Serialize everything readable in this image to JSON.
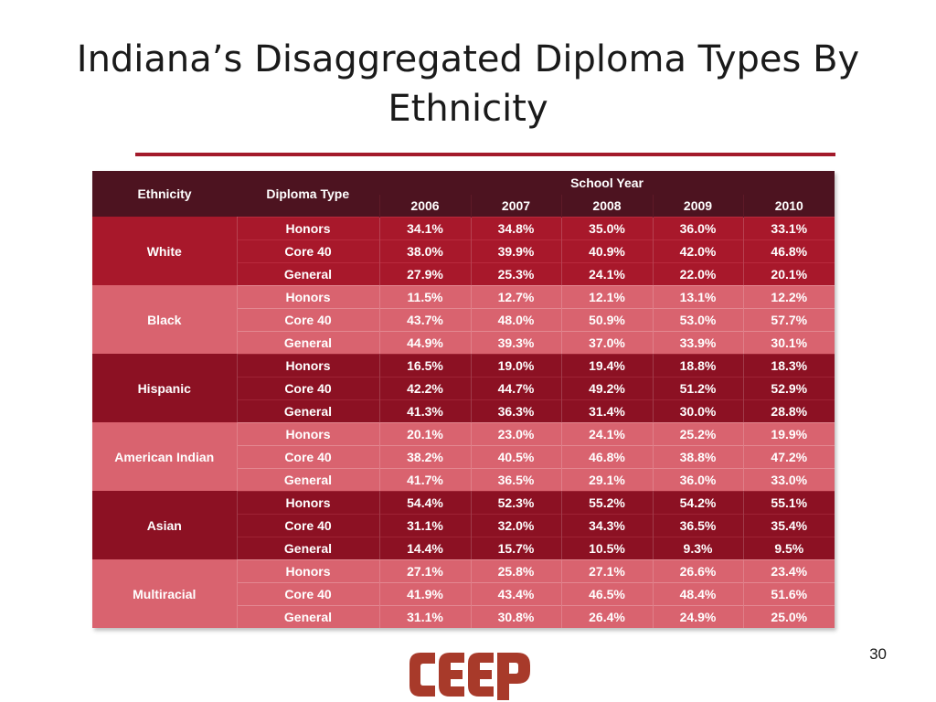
{
  "slide": {
    "title": "Indiana’s Disaggregated Diploma Types By Ethnicity",
    "page_number": "30"
  },
  "table": {
    "headers": {
      "ethnicity": "Ethnicity",
      "diploma_type": "Diploma Type",
      "school_year": "School Year",
      "years": [
        "2006",
        "2007",
        "2008",
        "2009",
        "2010"
      ]
    },
    "groups": [
      {
        "ethnicity": "White",
        "rows": [
          {
            "type": "Honors",
            "values": [
              "34.1%",
              "34.8%",
              "35.0%",
              "36.0%",
              "33.1%"
            ]
          },
          {
            "type": "Core 40",
            "values": [
              "38.0%",
              "39.9%",
              "40.9%",
              "42.0%",
              "46.8%"
            ]
          },
          {
            "type": "General",
            "values": [
              "27.9%",
              "25.3%",
              "24.1%",
              "22.0%",
              "20.1%"
            ]
          }
        ]
      },
      {
        "ethnicity": "Black",
        "rows": [
          {
            "type": "Honors",
            "values": [
              "11.5%",
              "12.7%",
              "12.1%",
              "13.1%",
              "12.2%"
            ]
          },
          {
            "type": "Core 40",
            "values": [
              "43.7%",
              "48.0%",
              "50.9%",
              "53.0%",
              "57.7%"
            ]
          },
          {
            "type": "General",
            "values": [
              "44.9%",
              "39.3%",
              "37.0%",
              "33.9%",
              "30.1%"
            ]
          }
        ]
      },
      {
        "ethnicity": "Hispanic",
        "rows": [
          {
            "type": "Honors",
            "values": [
              "16.5%",
              "19.0%",
              "19.4%",
              "18.8%",
              "18.3%"
            ]
          },
          {
            "type": "Core 40",
            "values": [
              "42.2%",
              "44.7%",
              "49.2%",
              "51.2%",
              "52.9%"
            ]
          },
          {
            "type": "General",
            "values": [
              "41.3%",
              "36.3%",
              "31.4%",
              "30.0%",
              "28.8%"
            ]
          }
        ]
      },
      {
        "ethnicity": "American Indian",
        "rows": [
          {
            "type": "Honors",
            "values": [
              "20.1%",
              "23.0%",
              "24.1%",
              "25.2%",
              "19.9%"
            ]
          },
          {
            "type": "Core 40",
            "values": [
              "38.2%",
              "40.5%",
              "46.8%",
              "38.8%",
              "47.2%"
            ]
          },
          {
            "type": "General",
            "values": [
              "41.7%",
              "36.5%",
              "29.1%",
              "36.0%",
              "33.0%"
            ]
          }
        ]
      },
      {
        "ethnicity": "Asian",
        "rows": [
          {
            "type": "Honors",
            "values": [
              "54.4%",
              "52.3%",
              "55.2%",
              "54.2%",
              "55.1%"
            ]
          },
          {
            "type": "Core 40",
            "values": [
              "31.1%",
              "32.0%",
              "34.3%",
              "36.5%",
              "35.4%"
            ]
          },
          {
            "type": "General",
            "values": [
              "14.4%",
              "15.7%",
              "10.5%",
              "9.3%",
              "9.5%"
            ]
          }
        ]
      },
      {
        "ethnicity": "Multiracial",
        "rows": [
          {
            "type": "Honors",
            "values": [
              "27.1%",
              "25.8%",
              "27.1%",
              "26.6%",
              "23.4%"
            ]
          },
          {
            "type": "Core 40",
            "values": [
              "41.9%",
              "43.4%",
              "46.5%",
              "48.4%",
              "51.6%"
            ]
          },
          {
            "type": "General",
            "values": [
              "31.1%",
              "30.8%",
              "26.4%",
              "24.9%",
              "25.0%"
            ]
          }
        ]
      }
    ]
  },
  "logo": {
    "text": "CEEP",
    "color": "#a83a2a"
  },
  "colors": {
    "header": "#4d1320",
    "band_dark": "#a8182b",
    "band_light": "#d9636f",
    "band_darker": "#8c1123",
    "rule": "#a31a2b"
  }
}
